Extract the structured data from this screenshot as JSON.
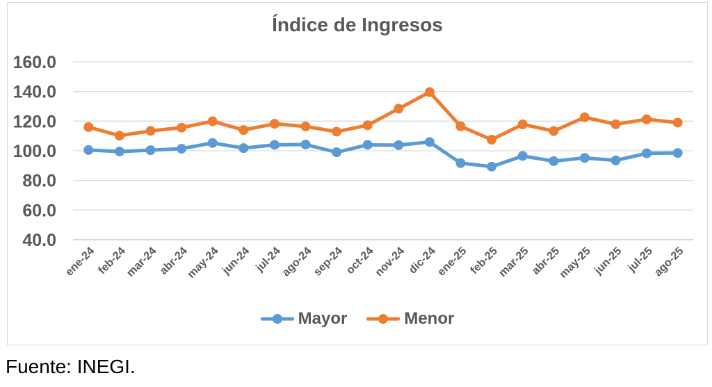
{
  "source_note": "Fuente: INEGI.",
  "colors": {
    "text": "#595959",
    "gridline": "#d9d9d9",
    "axis_line": "#bfbfbf",
    "frame_border": "#d9d9d9",
    "mayor": "#5b9bd5",
    "menor": "#ed7d31"
  },
  "chart_data": {
    "type": "line",
    "title": "Índice de Ingresos",
    "categories": [
      "ene-24",
      "feb-24",
      "mar-24",
      "abr-24",
      "may-24",
      "jun-24",
      "jul-24",
      "ago-24",
      "sep-24",
      "oct-24",
      "nov-24",
      "dic-24",
      "ene-25",
      "feb-25",
      "mar-25",
      "abr-25",
      "may-25",
      "jun-25",
      "jul-25",
      "ago-25"
    ],
    "series": [
      {
        "name": "Mayor",
        "color": "#5b9bd5",
        "values": [
          100.5,
          99.5,
          100.4,
          101.4,
          105.3,
          101.8,
          104.0,
          104.2,
          99.0,
          104.0,
          103.8,
          105.9,
          91.7,
          89.3,
          96.5,
          93.0,
          95.2,
          93.5,
          98.3,
          98.5
        ]
      },
      {
        "name": "Menor",
        "color": "#ed7d31",
        "values": [
          116.0,
          110.2,
          113.4,
          115.6,
          119.9,
          114.0,
          118.2,
          116.4,
          112.9,
          117.2,
          128.4,
          139.6,
          116.5,
          107.5,
          117.8,
          113.3,
          122.6,
          117.9,
          121.2,
          119.0
        ]
      }
    ],
    "ylim": [
      40,
      160
    ],
    "yticks": [
      {
        "v": 160,
        "label": "160.0"
      },
      {
        "v": 140,
        "label": "140.0"
      },
      {
        "v": 120,
        "label": "120.0"
      },
      {
        "v": 100,
        "label": "100.0"
      },
      {
        "v": 80,
        "label": "80.0"
      },
      {
        "v": 60,
        "label": "60.0"
      },
      {
        "v": 40,
        "label": "40.0"
      }
    ],
    "grid": true,
    "x_label_rotation_deg": 45,
    "legend_position": "bottom"
  }
}
